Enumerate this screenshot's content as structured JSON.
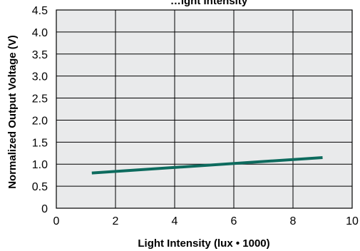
{
  "chart_data": {
    "type": "line",
    "title": "…ight Intensity",
    "xlabel": "Light Intensity (lux • 1000)",
    "ylabel": "Normalized Output Voltage (V)",
    "xlim": [
      0,
      10
    ],
    "ylim": [
      0,
      4.5
    ],
    "xticks": [
      "0",
      "2",
      "4",
      "6",
      "8",
      "10"
    ],
    "yticks": [
      "0",
      "0.5",
      "1.0",
      "1.5",
      "2.0",
      "2.5",
      "3.0",
      "3.5",
      "4.0",
      "4.5"
    ],
    "grid": true,
    "series": [
      {
        "x": [
          1.2,
          9.0
        ],
        "y": [
          0.8,
          1.15
        ]
      }
    ],
    "colors": {
      "plot_background": "#e9eaeb",
      "grid": "#000000",
      "line": "#0d6b5e"
    }
  }
}
